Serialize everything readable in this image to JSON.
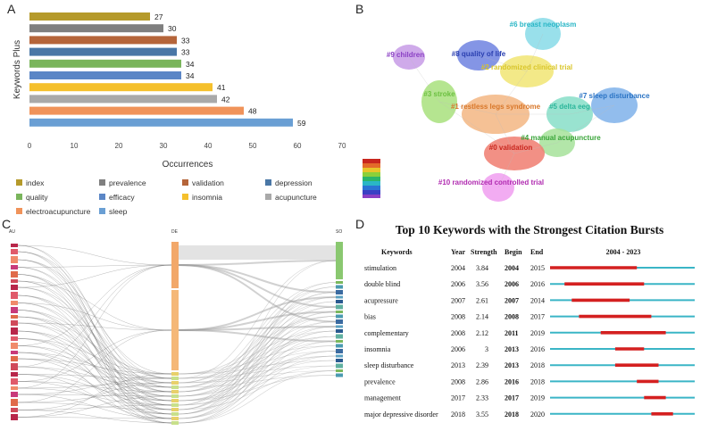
{
  "panels": {
    "A": "A",
    "B": "B",
    "C": "C",
    "D": "D"
  },
  "chart_data": [
    {
      "id": "A",
      "type": "bar",
      "orientation": "horizontal",
      "ylabel": "Keywords Plus",
      "xlabel": "Occurrences",
      "xlim": [
        0,
        70
      ],
      "xticks": [
        "0",
        "10",
        "20",
        "30",
        "40",
        "50",
        "60",
        "70"
      ],
      "categories": [
        "index",
        "prevalence",
        "validation",
        "depression",
        "quality",
        "efficacy",
        "insomnia",
        "acupuncture",
        "electroacupuncture",
        "sleep"
      ],
      "values": [
        27,
        30,
        33,
        33,
        34,
        34,
        41,
        42,
        48,
        59
      ],
      "colors": [
        "#b59a2b",
        "#7f7f7f",
        "#b5653a",
        "#4a77a6",
        "#7ab55c",
        "#5b86c6",
        "#f5c02c",
        "#a9a9a9",
        "#f0935a",
        "#6a9fd4"
      ]
    },
    {
      "id": "B",
      "type": "cluster-map",
      "clusters": [
        {
          "label": "#6 breast neoplasm",
          "color": "#29b6c6"
        },
        {
          "label": "#9 children",
          "color": "#8a3fc4"
        },
        {
          "label": "#8 quality of life",
          "color": "#2a3fb0"
        },
        {
          "label": "#2 randomized clinical trial",
          "color": "#d9c62a"
        },
        {
          "label": "#3 stroke",
          "color": "#6cc040"
        },
        {
          "label": "#1 restless legs syndrome",
          "color": "#d8772a"
        },
        {
          "label": "#5 delta eeg",
          "color": "#2ab59a"
        },
        {
          "label": "#7 sleep disturbance",
          "color": "#2a73c4"
        },
        {
          "label": "#4 manual acupuncture",
          "color": "#3aa53a"
        },
        {
          "label": "#0 validation",
          "color": "#c8261e"
        },
        {
          "label": "#10 randomized controlled trial",
          "color": "#b02ab0"
        }
      ]
    },
    {
      "id": "C",
      "type": "sankey",
      "columns": [
        "AU",
        "DE",
        "SO"
      ]
    },
    {
      "id": "D",
      "type": "table",
      "title": "Top 10 Keywords with the Strongest Citation Bursts",
      "headers": {
        "keywords": "Keywords",
        "year": "Year",
        "strength": "Strength",
        "begin": "Begin",
        "end": "End",
        "range": "2004 - 2023"
      },
      "range_years": [
        2004,
        2023
      ],
      "rows": [
        {
          "keyword": "stimulation",
          "year": "2004",
          "strength": "3.84",
          "begin": "2004",
          "end": "2015"
        },
        {
          "keyword": "double blind",
          "year": "2006",
          "strength": "3.56",
          "begin": "2006",
          "end": "2016"
        },
        {
          "keyword": "acupressure",
          "year": "2007",
          "strength": "2.61",
          "begin": "2007",
          "end": "2014"
        },
        {
          "keyword": "bias",
          "year": "2008",
          "strength": "2.14",
          "begin": "2008",
          "end": "2017"
        },
        {
          "keyword": "complementary",
          "year": "2008",
          "strength": "2.12",
          "begin": "2011",
          "end": "2019"
        },
        {
          "keyword": "insomnia",
          "year": "2006",
          "strength": "3",
          "begin": "2013",
          "end": "2016"
        },
        {
          "keyword": "sleep disturbance",
          "year": "2013",
          "strength": "2.39",
          "begin": "2013",
          "end": "2018"
        },
        {
          "keyword": "prevalence",
          "year": "2008",
          "strength": "2.86",
          "begin": "2016",
          "end": "2018"
        },
        {
          "keyword": "management",
          "year": "2017",
          "strength": "2.33",
          "begin": "2017",
          "end": "2019"
        },
        {
          "keyword": "major depressive disorder",
          "year": "2018",
          "strength": "3.55",
          "begin": "2018",
          "end": "2020"
        }
      ]
    }
  ]
}
